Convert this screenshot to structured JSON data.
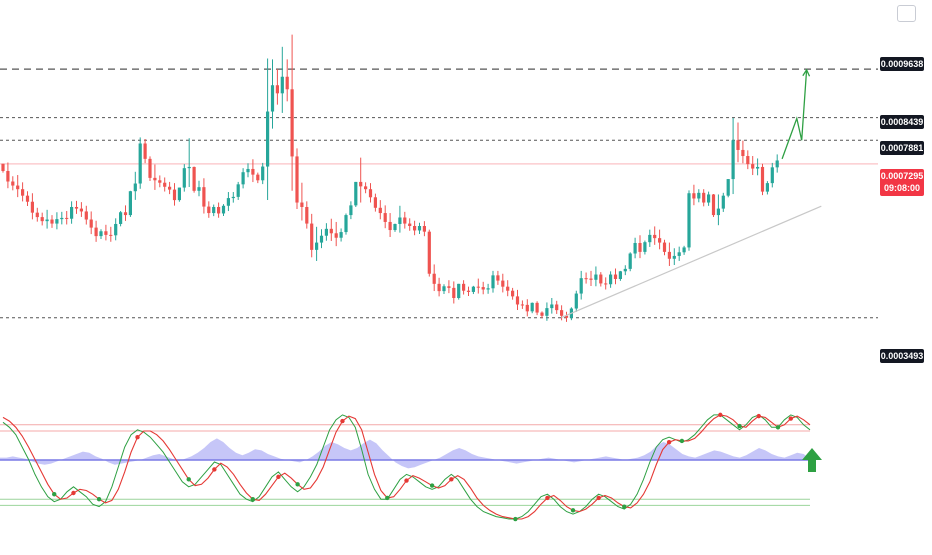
{
  "colors": {
    "up": "#26a69a",
    "down": "#ef5350",
    "resistance": "#555555",
    "current": "#f23645",
    "trendline": "#c8c8c8",
    "projection": "#2ea043",
    "k_line": "#2ea043",
    "d_line": "#e53935",
    "osc_fill": "#b3b3f5",
    "band_upper": "#f4a9a9",
    "band_lower": "#9bd49b",
    "arrow": "#2ea043"
  },
  "price_labels": {
    "l1": "0.0009638",
    "l2": "0.0008439",
    "l3": "0.0007881",
    "current": "0.0007295",
    "countdown": "09:08:00",
    "support": "0.0003493"
  },
  "icons": {
    "corner": "square-icon",
    "signal": "arrow-up-icon"
  },
  "chart_data": {
    "type": "candlestick",
    "y_range": [
      0.00022,
      0.00111
    ],
    "horizontal_levels": [
      0.0009638,
      0.0008439,
      0.0007881,
      0.0003493
    ],
    "current_price": 0.0007295,
    "candles": [
      [
        0.00073,
        0.000728,
        0.000712
      ],
      [
        0.000712,
        0.000733,
        0.000686
      ],
      [
        0.000686,
        0.000699,
        0.000676
      ],
      [
        0.000676,
        0.000702,
        0.000667
      ],
      [
        0.000667,
        0.000684,
        0.000651
      ],
      [
        0.000651,
        0.000662,
        0.000636
      ],
      [
        0.000636,
        0.000657,
        0.000609
      ],
      [
        0.000609,
        0.000621,
        0.000598
      ],
      [
        0.000598,
        0.000609,
        0.000588
      ],
      [
        0.000588,
        0.000616,
        0.000592
      ],
      [
        0.000592,
        0.000603,
        0.000582
      ],
      [
        0.000582,
        0.00061,
        0.000593
      ],
      [
        0.000593,
        0.000611,
        0.000596
      ],
      [
        0.000596,
        0.000613,
        0.000594
      ],
      [
        0.000594,
        0.000637,
        0.000623
      ],
      [
        0.000623,
        0.000638,
        0.000619
      ],
      [
        0.000619,
        0.000635,
        0.000612
      ],
      [
        0.000612,
        0.000626,
        0.000592
      ],
      [
        0.000592,
        0.000612,
        0.000572
      ],
      [
        0.000572,
        0.000589,
        0.000551
      ],
      [
        0.000551,
        0.000568,
        0.000563
      ],
      [
        0.000563,
        0.000579,
        0.000554
      ],
      [
        0.000554,
        0.000574,
        0.000553
      ],
      [
        0.000553,
        0.000595,
        0.000581
      ],
      [
        0.000581,
        0.000613,
        0.00061
      ],
      [
        0.00061,
        0.000627,
        0.000603
      ],
      [
        0.000603,
        0.000663,
        0.000662
      ],
      [
        0.000662,
        0.00071,
        0.000681
      ],
      [
        0.000681,
        0.000795,
        0.00078
      ],
      [
        0.00078,
        0.000791,
        0.000742
      ],
      [
        0.000742,
        0.000748,
        0.000695
      ],
      [
        0.000695,
        0.000728,
        0.000689
      ],
      [
        0.000689,
        0.000701,
        0.000683
      ],
      [
        0.000683,
        0.000696,
        0.000673
      ],
      [
        0.000673,
        0.000685,
        0.000666
      ],
      [
        0.000666,
        0.000682,
        0.00064
      ],
      [
        0.00064,
        0.000656,
        0.000671
      ],
      [
        0.000671,
        0.000729,
        0.000719
      ],
      [
        0.000719,
        0.000793,
        0.000722
      ],
      [
        0.000722,
        0.000723,
        0.000663
      ],
      [
        0.000663,
        0.000688,
        0.000672
      ],
      [
        0.000672,
        0.000694,
        0.000624
      ],
      [
        0.000624,
        0.000637,
        0.000608
      ],
      [
        0.000608,
        0.000629,
        0.000623
      ],
      [
        0.000623,
        0.000634,
        0.000607
      ],
      [
        0.000607,
        0.00063,
        0.000626
      ],
      [
        0.000626,
        0.00066,
        0.000645
      ],
      [
        0.000645,
        0.00066,
        0.000648
      ],
      [
        0.000648,
        0.000685,
        0.000679
      ],
      [
        0.000679,
        0.000719,
        0.000709
      ],
      [
        0.000709,
        0.000731,
        0.000717
      ],
      [
        0.000717,
        0.000741,
        0.000703
      ],
      [
        0.000703,
        0.000708,
        0.000689
      ],
      [
        0.000689,
        0.000732,
        0.000723
      ],
      [
        0.000723,
        0.00099,
        0.000859
      ],
      [
        0.000859,
        0.000988,
        0.000924
      ],
      [
        0.000924,
        0.000964,
        0.000904
      ],
      [
        0.000904,
        0.001019,
        0.000945
      ],
      [
        0.000945,
        0.000988,
        0.000914
      ],
      [
        0.000914,
        0.001049,
        0.000748
      ],
      [
        0.000748,
        0.000768,
        0.000634
      ],
      [
        0.000634,
        0.000683,
        0.000623
      ],
      [
        0.000623,
        0.000637,
        0.000582
      ],
      [
        0.000582,
        0.000606,
        0.000517
      ],
      [
        0.000517,
        0.000574,
        0.000535
      ],
      [
        0.000535,
        0.000568,
        0.000552
      ],
      [
        0.000552,
        0.000583,
        0.000569
      ],
      [
        0.000569,
        0.000594,
        0.000558
      ],
      [
        0.000558,
        0.000586,
        0.000547
      ],
      [
        0.000547,
        0.00057,
        0.000561
      ],
      [
        0.000561,
        0.000607,
        0.000603
      ],
      [
        0.000603,
        0.000637,
        0.000627
      ],
      [
        0.000627,
        0.000683,
        0.000685
      ],
      [
        0.000685,
        0.000745,
        0.000674
      ],
      [
        0.000674,
        0.000684,
        0.000667
      ],
      [
        0.000667,
        0.000682,
        0.000647
      ],
      [
        0.000647,
        0.000656,
        0.000621
      ],
      [
        0.000621,
        0.00064,
        0.000608
      ],
      [
        0.000608,
        0.000627,
        0.000586
      ],
      [
        0.000586,
        0.000608,
        0.000566
      ],
      [
        0.000566,
        0.000582,
        0.000581
      ],
      [
        0.000581,
        0.000626,
        0.000597
      ],
      [
        0.000597,
        0.000611,
        0.000582
      ],
      [
        0.000582,
        0.000595,
        0.000576
      ],
      [
        0.000576,
        0.000589,
        0.000565
      ],
      [
        0.000565,
        0.000584,
        0.000576
      ],
      [
        0.000576,
        0.000588,
        0.000562
      ],
      [
        0.000562,
        0.000567,
        0.000458
      ],
      [
        0.000458,
        0.000481,
        0.000433
      ],
      [
        0.000433,
        0.000448,
        0.000415
      ],
      [
        0.000415,
        0.000432,
        0.000427
      ],
      [
        0.000427,
        0.000442,
        0.000423
      ],
      [
        0.000423,
        0.000439,
        0.000398
      ],
      [
        0.000398,
        0.000425,
        0.000433
      ],
      [
        0.000433,
        0.000442,
        0.000416
      ],
      [
        0.000416,
        0.000426,
        0.000413
      ],
      [
        0.000413,
        0.000428,
        0.000426
      ],
      [
        0.000426,
        0.000446,
        0.000425
      ],
      [
        0.000425,
        0.000438,
        0.000419
      ],
      [
        0.000419,
        0.000433,
        0.000422
      ],
      [
        0.000422,
        0.000465,
        0.000454
      ],
      [
        0.000454,
        0.000465,
        0.000441
      ],
      [
        0.000441,
        0.000458,
        0.000426
      ],
      [
        0.000426,
        0.000442,
        0.000416
      ],
      [
        0.000416,
        0.000423,
        0.000402
      ],
      [
        0.000402,
        0.000418,
        0.000382
      ],
      [
        0.000382,
        0.000392,
        0.000381
      ],
      [
        0.000381,
        0.000395,
        0.000365
      ],
      [
        0.000365,
        0.000387,
        0.000386
      ],
      [
        0.000386,
        0.00039,
        0.000362
      ],
      [
        0.000362,
        0.000365,
        0.000354
      ],
      [
        0.000354,
        0.000387,
        0.000373
      ],
      [
        0.000373,
        0.000398,
        0.000382
      ],
      [
        0.000382,
        0.000391,
        0.000368
      ],
      [
        0.000368,
        0.00038,
        0.000354
      ],
      [
        0.000354,
        0.000364,
        0.000349
      ],
      [
        0.000349,
        0.000375,
        0.000372
      ],
      [
        0.000372,
        0.000416,
        0.000409
      ],
      [
        0.000409,
        0.000465,
        0.000447
      ],
      [
        0.000447,
        0.000461,
        0.000446
      ],
      [
        0.000446,
        0.000465,
        0.000443
      ],
      [
        0.000443,
        0.000476,
        0.000456
      ],
      [
        0.000456,
        0.000462,
        0.000434
      ],
      [
        0.000434,
        0.000449,
        0.000432
      ],
      [
        0.000432,
        0.000464,
        0.000456
      ],
      [
        0.000456,
        0.000471,
        0.000445
      ],
      [
        0.000445,
        0.000465,
        0.000464
      ],
      [
        0.000464,
        0.000479,
        0.00047
      ],
      [
        0.00047,
        0.000511,
        0.000508
      ],
      [
        0.000508,
        0.000547,
        0.000534
      ],
      [
        0.000534,
        0.000553,
        0.000512
      ],
      [
        0.000512,
        0.00054,
        0.000536
      ],
      [
        0.000536,
        0.000567,
        0.000554
      ],
      [
        0.000554,
        0.000575,
        0.000546
      ],
      [
        0.000546,
        0.000567,
        0.000535
      ],
      [
        0.000535,
        0.000542,
        0.000512
      ],
      [
        0.000512,
        0.000535,
        0.000495
      ],
      [
        0.000495,
        0.000521,
        0.000502
      ],
      [
        0.000502,
        0.000525,
        0.000511
      ],
      [
        0.000511,
        0.000527,
        0.000523
      ],
      [
        0.000523,
        0.000664,
        0.000657
      ],
      [
        0.000657,
        0.000678,
        0.000644
      ],
      [
        0.000644,
        0.000667,
        0.000658
      ],
      [
        0.000658,
        0.000667,
        0.000634
      ],
      [
        0.000634,
        0.000661,
        0.000654
      ],
      [
        0.000654,
        0.000655,
        0.000603
      ],
      [
        0.000603,
        0.000654,
        0.000619
      ],
      [
        0.000619,
        0.000658,
        0.000651
      ],
      [
        0.000651,
        0.000677,
        0.000692
      ],
      [
        0.000692,
        0.000843,
        0.000788
      ],
      [
        0.000788,
        0.000832,
        0.000764
      ],
      [
        0.000764,
        0.000787,
        0.000749
      ],
      [
        0.000749,
        0.000763,
        0.000729
      ],
      [
        0.000729,
        0.000749,
        0.000718
      ],
      [
        0.000718,
        0.000743,
        0.000722
      ],
      [
        0.000722,
        0.00073,
        0.000661
      ],
      [
        0.000661,
        0.000687,
        0.000682
      ],
      [
        0.000682,
        0.000732,
        0.000721
      ],
      [
        0.000721,
        0.000753,
        0.000738
      ]
    ],
    "trendline": {
      "start": [
        114,
        0.00035
      ],
      "end": [
        167,
        0.000625
      ]
    },
    "projection": [
      [
        159,
        0.000742
      ],
      [
        162,
        0.000842
      ],
      [
        163,
        0.000788
      ],
      [
        164,
        0.000962
      ]
    ],
    "oscillator": {
      "k": [
        82,
        78,
        72,
        62,
        52,
        40,
        30,
        22,
        18,
        20,
        26,
        30,
        26,
        22,
        16,
        14,
        18,
        30,
        46,
        62,
        72,
        76,
        74,
        70,
        64,
        58,
        50,
        42,
        34,
        30,
        32,
        38,
        44,
        50,
        48,
        40,
        32,
        24,
        20,
        18,
        22,
        30,
        38,
        42,
        36,
        30,
        26,
        30,
        38,
        48,
        62,
        76,
        84,
        88,
        86,
        78,
        60,
        40,
        28,
        20,
        20,
        28,
        36,
        40,
        38,
        34,
        30,
        28,
        30,
        36,
        40,
        36,
        28,
        20,
        14,
        10,
        8,
        6,
        5,
        4,
        4,
        6,
        10,
        16,
        22,
        24,
        20,
        14,
        10,
        8,
        10,
        14,
        20,
        24,
        22,
        18,
        14,
        12,
        16,
        24,
        36,
        50,
        62,
        68,
        70,
        68,
        66,
        68,
        72,
        78,
        84,
        88,
        88,
        84,
        80,
        76,
        80,
        86,
        88,
        84,
        78,
        78,
        84,
        88,
        86,
        80,
        76
      ],
      "d": [
        86,
        83,
        78,
        71,
        62,
        52,
        42,
        32,
        24,
        20,
        21,
        25,
        28,
        27,
        24,
        20,
        17,
        19,
        28,
        42,
        58,
        70,
        75,
        75,
        72,
        67,
        60,
        52,
        44,
        36,
        31,
        32,
        37,
        44,
        49,
        46,
        40,
        32,
        25,
        20,
        19,
        24,
        31,
        38,
        41,
        37,
        32,
        28,
        29,
        36,
        46,
        60,
        74,
        83,
        87,
        85,
        76,
        58,
        40,
        27,
        21,
        22,
        28,
        35,
        39,
        37,
        34,
        31,
        29,
        31,
        36,
        39,
        36,
        29,
        21,
        15,
        11,
        8,
        6,
        5,
        4,
        4,
        6,
        10,
        16,
        21,
        23,
        19,
        14,
        11,
        10,
        12,
        16,
        21,
        23,
        21,
        17,
        14,
        13,
        17,
        24,
        34,
        48,
        60,
        66,
        68,
        67,
        67,
        69,
        74,
        80,
        85,
        88,
        87,
        84,
        79,
        78,
        83,
        87,
        86,
        82,
        78,
        80,
        85,
        87,
        84,
        80
      ],
      "upper_bands": [
        80,
        75
      ],
      "lower_bands": [
        20,
        15
      ]
    },
    "histogram": {
      "values": [
        0.02,
        0.02,
        0.03,
        0.02,
        0.01,
        -0.01,
        -0.03,
        -0.04,
        -0.03,
        -0.01,
        0.01,
        0.03,
        0.05,
        0.07,
        0.06,
        0.03,
        0.01,
        -0.02,
        -0.04,
        -0.03,
        -0.02,
        -0.01,
        0.0,
        0.02,
        0.04,
        0.05,
        0.03,
        0.01,
        -0.01,
        0.01,
        0.03,
        0.06,
        0.1,
        0.15,
        0.18,
        0.15,
        0.1,
        0.06,
        0.04,
        0.06,
        0.09,
        0.08,
        0.05,
        0.03,
        0.01,
        0.0,
        -0.01,
        -0.02,
        0.0,
        0.03,
        0.07,
        0.12,
        0.15,
        0.13,
        0.1,
        0.08,
        0.1,
        0.14,
        0.17,
        0.14,
        0.08,
        0.03,
        -0.02,
        -0.05,
        -0.07,
        -0.06,
        -0.04,
        -0.02,
        0.0,
        0.02,
        0.05,
        0.08,
        0.1,
        0.08,
        0.05,
        0.03,
        0.02,
        0.01,
        0.0,
        -0.01,
        -0.02,
        -0.03,
        -0.02,
        -0.01,
        0.0,
        0.01,
        0.02,
        0.01,
        0.0,
        -0.01,
        -0.02,
        -0.01,
        0.0,
        0.01,
        0.02,
        0.03,
        0.02,
        0.01,
        0.0,
        0.01,
        0.02,
        0.04,
        0.07,
        0.12,
        0.15,
        0.13,
        0.09,
        0.05,
        0.03,
        0.02,
        0.04,
        0.06,
        0.08,
        0.07,
        0.05,
        0.03,
        0.02,
        0.04,
        0.07,
        0.1,
        0.08,
        0.05,
        0.03,
        0.02,
        0.04,
        0.06,
        0.05,
        0.01
      ]
    }
  }
}
